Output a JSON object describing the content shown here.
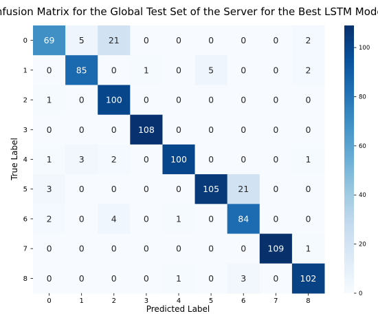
{
  "chart_data": {
    "type": "heatmap",
    "title": "Confusion Matrix for the Global Test Set of the Server for the Best LSTM Model",
    "xlabel": "Predicted Label",
    "ylabel": "True Label",
    "x_categories": [
      "0",
      "1",
      "2",
      "3",
      "4",
      "5",
      "6",
      "7",
      "8"
    ],
    "y_categories": [
      "0",
      "1",
      "2",
      "3",
      "4",
      "5",
      "6",
      "7",
      "8"
    ],
    "values": [
      [
        69,
        5,
        21,
        0,
        0,
        0,
        0,
        0,
        2
      ],
      [
        0,
        85,
        0,
        1,
        0,
        5,
        0,
        0,
        2
      ],
      [
        1,
        0,
        100,
        0,
        0,
        0,
        0,
        0,
        0
      ],
      [
        0,
        0,
        0,
        108,
        0,
        0,
        0,
        0,
        0
      ],
      [
        1,
        3,
        2,
        0,
        100,
        0,
        0,
        0,
        1
      ],
      [
        3,
        0,
        0,
        0,
        0,
        105,
        21,
        0,
        0
      ],
      [
        2,
        0,
        4,
        0,
        1,
        0,
        84,
        0,
        0
      ],
      [
        0,
        0,
        0,
        0,
        0,
        0,
        0,
        109,
        1
      ],
      [
        0,
        0,
        0,
        0,
        1,
        0,
        3,
        0,
        102
      ]
    ],
    "colormap": "Blues",
    "color_range": [
      0,
      109
    ],
    "colorbar_ticks": [
      "0",
      "20",
      "40",
      "60",
      "80",
      "100"
    ],
    "colorbar_values": [
      0,
      20,
      40,
      60,
      80,
      100
    ]
  }
}
